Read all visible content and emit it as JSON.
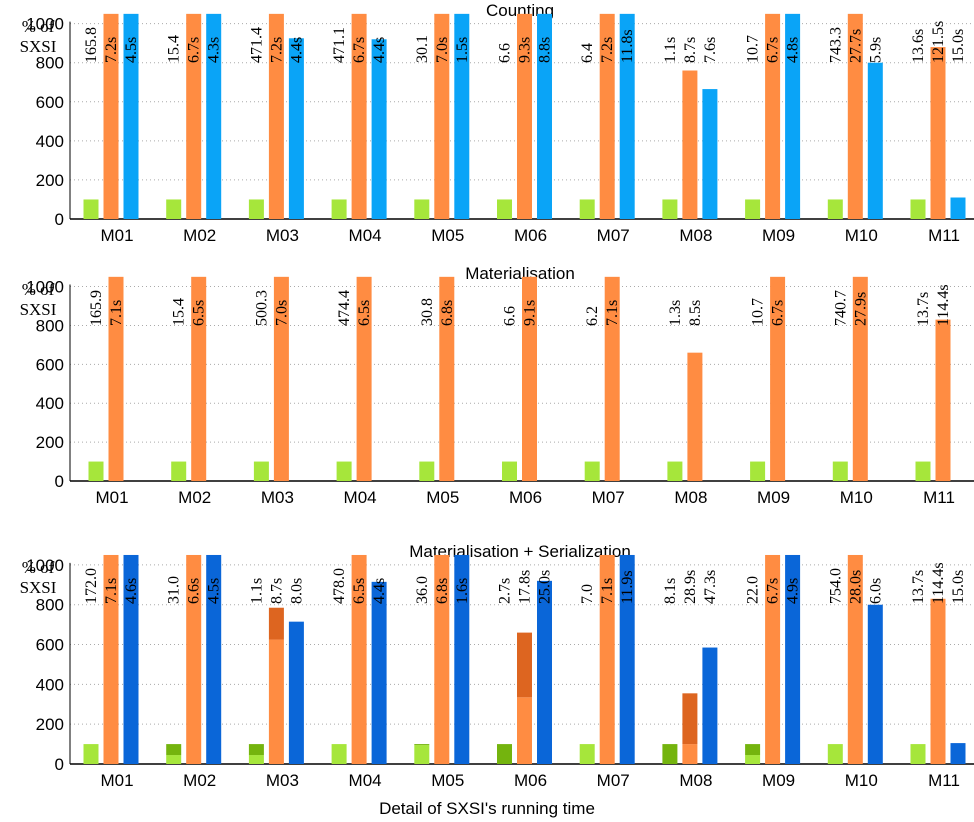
{
  "figure_caption": "Detail of SXSI's running time",
  "colors": {
    "sxsi": "#a6e63b",
    "sxsi_dark": "#74b40e",
    "orange": "#ff8c42",
    "orange_dark": "#dd6520",
    "light_blue": "#0aa4f7",
    "dark_blue": "#0a66d8",
    "grid": "#aaaaaa"
  },
  "chart_data": [
    {
      "type": "bar",
      "title": "Counting",
      "ylabel_line1": "% of",
      "ylabel_line2": "SXSI",
      "categories": [
        "M01",
        "M02",
        "M03",
        "M04",
        "M05",
        "M06",
        "M07",
        "M08",
        "M09",
        "M10",
        "M11"
      ],
      "ylim": [
        0,
        1000
      ],
      "yticks": [
        0,
        200,
        400,
        600,
        800,
        1000
      ],
      "grid": true,
      "series": [
        {
          "color_key": "sxsi",
          "values": [
            100,
            100,
            100,
            100,
            100,
            100,
            100,
            100,
            100,
            100,
            100
          ],
          "labels": [
            "165.8",
            "15.4",
            "471.4",
            "471.1",
            "30.1",
            "6.6",
            "6.4",
            "1.1s",
            "10.7",
            "743.3",
            "13.6s"
          ]
        },
        {
          "color_key": "orange",
          "values": [
            1050,
            1050,
            1050,
            1050,
            1050,
            1050,
            1050,
            760,
            1050,
            1050,
            880
          ],
          "labels": [
            "7.2s",
            "6.7s",
            "7.2s",
            "6.7s",
            "7.0s",
            "9.3s",
            "7.2s",
            "8.7s",
            "6.7s",
            "27.7s",
            "121.5s"
          ]
        },
        {
          "color_key": "light_blue",
          "values": [
            1050,
            1050,
            925,
            920,
            1050,
            1050,
            1050,
            665,
            1050,
            800,
            110
          ],
          "labels": [
            "4.5s",
            "4.3s",
            "4.4s",
            "4.4s",
            "1.5s",
            "8.8s",
            "11.8s",
            "7.6s",
            "4.8s",
            "5.9s",
            "15.0s"
          ]
        }
      ]
    },
    {
      "type": "bar",
      "title": "Materialisation",
      "ylabel_line1": "% of",
      "ylabel_line2": "SXSI",
      "categories": [
        "M01",
        "M02",
        "M03",
        "M04",
        "M05",
        "M06",
        "M07",
        "M08",
        "M09",
        "M10",
        "M11"
      ],
      "ylim": [
        0,
        1000
      ],
      "yticks": [
        0,
        200,
        400,
        600,
        800,
        1000
      ],
      "grid": true,
      "series": [
        {
          "color_key": "sxsi",
          "values": [
            100,
            100,
            100,
            100,
            100,
            100,
            100,
            100,
            100,
            100,
            100
          ],
          "labels": [
            "165.9",
            "15.4",
            "500.3",
            "474.4",
            "30.8",
            "6.6",
            "6.2",
            "1.3s",
            "10.7",
            "740.7",
            "13.7s"
          ]
        },
        {
          "color_key": "orange",
          "values": [
            1050,
            1050,
            1050,
            1050,
            1050,
            1050,
            1050,
            660,
            1050,
            1050,
            830
          ],
          "labels": [
            "7.1s",
            "6.5s",
            "7.0s",
            "6.5s",
            "6.8s",
            "9.1s",
            "7.1s",
            "8.5s",
            "6.7s",
            "27.9s",
            "114.4s"
          ]
        }
      ]
    },
    {
      "type": "bar",
      "title": "Materialisation + Serialization",
      "ylabel_line1": "% of",
      "ylabel_line2": "SXSI",
      "categories": [
        "M01",
        "M02",
        "M03",
        "M04",
        "M05",
        "M06",
        "M07",
        "M08",
        "M09",
        "M10",
        "M11"
      ],
      "ylim": [
        0,
        1000
      ],
      "yticks": [
        0,
        200,
        400,
        600,
        800,
        1000
      ],
      "grid": true,
      "series": [
        {
          "color_key": "sxsi",
          "values": [
            100,
            100,
            100,
            100,
            100,
            100,
            100,
            100,
            100,
            100,
            100
          ],
          "stack_bottom": [
            100,
            45,
            45,
            100,
            95,
            0,
            100,
            0,
            45,
            100,
            100
          ],
          "labels": [
            "172.0",
            "31.0",
            "1.1s",
            "478.0",
            "36.0",
            "2.7s",
            "7.0",
            "8.1s",
            "22.0",
            "754.0",
            "13.7s"
          ]
        },
        {
          "color_key": "orange",
          "values": [
            1050,
            1050,
            785,
            1050,
            1050,
            660,
            1050,
            355,
            1050,
            1050,
            830
          ],
          "stack_bottom": [
            1050,
            1050,
            625,
            1050,
            1050,
            335,
            1050,
            100,
            1050,
            1050,
            830
          ],
          "labels": [
            "7.1s",
            "6.6s",
            "8.7s",
            "6.5s",
            "6.8s",
            "17.8s",
            "7.1s",
            "28.9s",
            "6.7s",
            "28.0s",
            "114.4s"
          ]
        },
        {
          "color_key": "dark_blue",
          "values": [
            1050,
            1050,
            715,
            915,
            1050,
            920,
            1050,
            585,
            1050,
            800,
            105
          ],
          "labels": [
            "4.6s",
            "4.5s",
            "8.0s",
            "4.4s",
            "1.6s",
            "25.0s",
            "11.9s",
            "47.3s",
            "4.9s",
            "6.0s",
            "15.0s"
          ]
        }
      ]
    }
  ]
}
